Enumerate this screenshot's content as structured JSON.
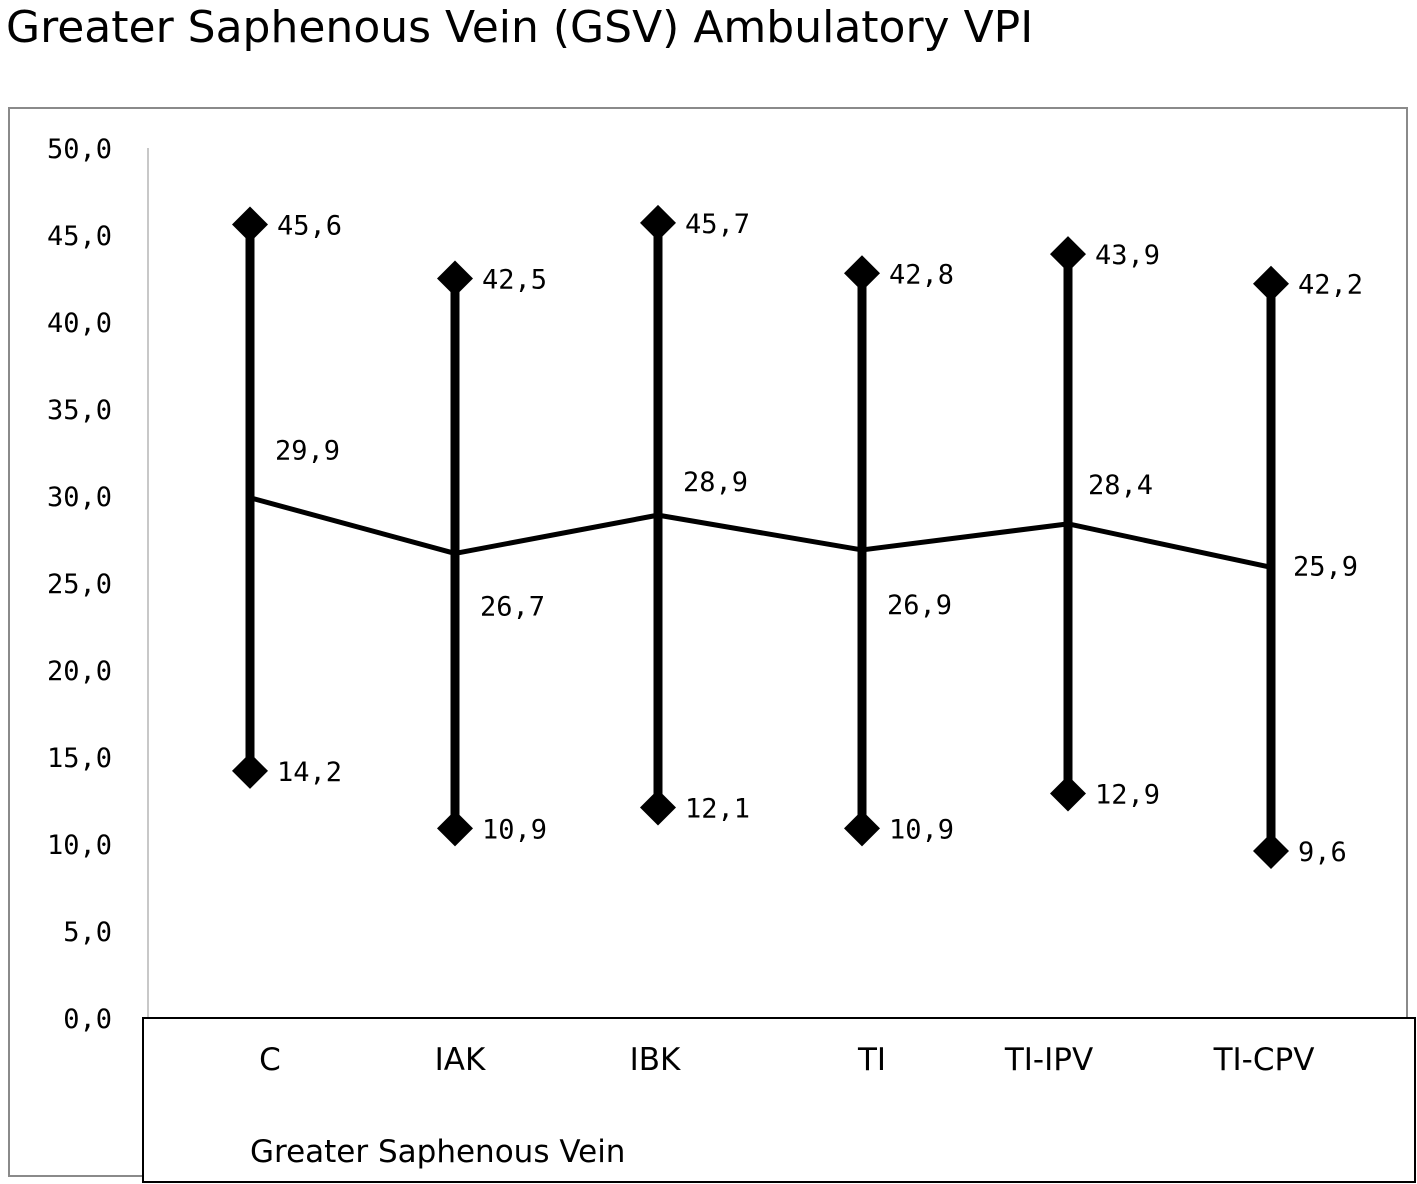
{
  "chart_data": {
    "type": "line",
    "title": "Greater Saphenous Vein  (GSV) Ambulatory VPI",
    "xlabel": "Greater Saphenous Vein",
    "ylabel": "",
    "ylim": [
      0,
      50
    ],
    "yticks": [
      "0,0",
      "5,0",
      "10,0",
      "15,0",
      "20,0",
      "25,0",
      "30,0",
      "35,0",
      "40,0",
      "45,0",
      "50,0"
    ],
    "categories": [
      "C",
      "IAK",
      "IBK",
      "TI",
      "TI-IPV",
      "TI-CPV"
    ],
    "series": [
      {
        "values": [
          45.6,
          42.5,
          45.7,
          42.8,
          43.9,
          42.2
        ],
        "labels": [
          "45,6",
          "42,5",
          "45,7",
          "42,8",
          "43,9",
          "42,2"
        ]
      },
      {
        "values": [
          29.9,
          26.7,
          28.9,
          26.9,
          28.4,
          25.9
        ],
        "labels": [
          "29,9",
          "26,7",
          "28,9",
          "26,9",
          "28,4",
          "25,9"
        ]
      },
      {
        "values": [
          14.2,
          10.9,
          12.1,
          10.9,
          12.9,
          9.6
        ],
        "labels": [
          "14,2",
          "10,9",
          "12,1",
          "10,9",
          "12,9",
          "9,6"
        ]
      }
    ],
    "grid": false,
    "legend": "none",
    "line_color": "#000000"
  }
}
